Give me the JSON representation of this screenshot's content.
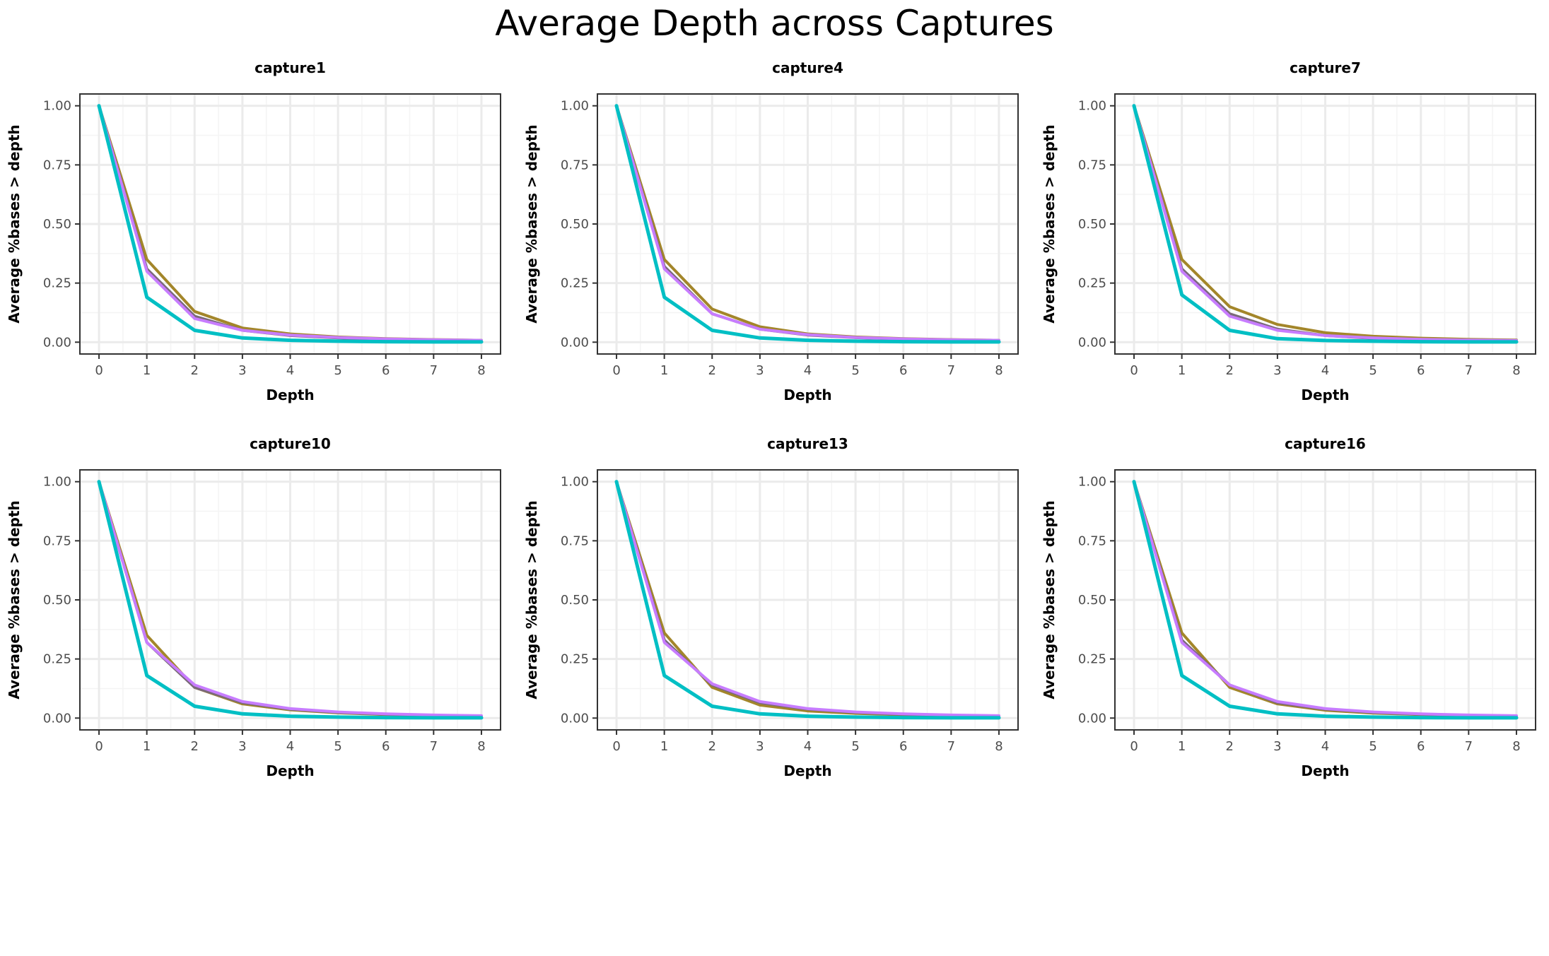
{
  "title": "Average Depth across Captures",
  "colors": {
    "series_olive": "#a3862a",
    "series_gray": "#7a6a78",
    "series_violet": "#c77cff",
    "series_teal": "#00bfc4",
    "grid_major": "#ebebeb",
    "grid_minor": "#f4f4f4",
    "panel_border": "#333333",
    "text": "#000000",
    "tick_text": "#4d4d4d"
  },
  "chart_data": [
    {
      "type": "line",
      "title": "capture1",
      "xlabel": "Depth",
      "ylabel": "Average %bases > depth",
      "x": [
        0,
        1,
        2,
        3,
        4,
        5,
        6,
        7,
        8
      ],
      "xlim": [
        -0.4,
        8.4
      ],
      "ylim": [
        -0.05,
        1.05
      ],
      "x_ticks": [
        "0",
        "1",
        "2",
        "3",
        "4",
        "5",
        "6",
        "7",
        "8"
      ],
      "y_ticks": [
        "0.00",
        "0.25",
        "0.50",
        "0.75",
        "1.00"
      ],
      "y_tick_values": [
        0,
        0.25,
        0.5,
        0.75,
        1.0
      ],
      "grid": true,
      "series": [
        {
          "color": "#a3862a",
          "values": [
            1.0,
            0.35,
            0.13,
            0.06,
            0.035,
            0.022,
            0.015,
            0.011,
            0.008
          ]
        },
        {
          "color": "#7a6a78",
          "values": [
            1.0,
            0.31,
            0.11,
            0.05,
            0.028,
            0.018,
            0.012,
            0.009,
            0.006
          ]
        },
        {
          "color": "#c77cff",
          "values": [
            1.0,
            0.3,
            0.1,
            0.05,
            0.03,
            0.02,
            0.014,
            0.01,
            0.008
          ]
        },
        {
          "color": "#00bfc4",
          "values": [
            1.0,
            0.19,
            0.05,
            0.018,
            0.008,
            0.004,
            0.002,
            0.001,
            0.001
          ]
        }
      ]
    },
    {
      "type": "line",
      "title": "capture4",
      "xlabel": "Depth",
      "ylabel": "Average %bases > depth",
      "x": [
        0,
        1,
        2,
        3,
        4,
        5,
        6,
        7,
        8
      ],
      "xlim": [
        -0.4,
        8.4
      ],
      "ylim": [
        -0.05,
        1.05
      ],
      "x_ticks": [
        "0",
        "1",
        "2",
        "3",
        "4",
        "5",
        "6",
        "7",
        "8"
      ],
      "y_ticks": [
        "0.00",
        "0.25",
        "0.50",
        "0.75",
        "1.00"
      ],
      "y_tick_values": [
        0,
        0.25,
        0.5,
        0.75,
        1.0
      ],
      "grid": true,
      "series": [
        {
          "color": "#a3862a",
          "values": [
            1.0,
            0.35,
            0.14,
            0.065,
            0.035,
            0.022,
            0.015,
            0.011,
            0.008
          ]
        },
        {
          "color": "#7a6a78",
          "values": [
            1.0,
            0.32,
            0.12,
            0.055,
            0.03,
            0.019,
            0.013,
            0.009,
            0.006
          ]
        },
        {
          "color": "#c77cff",
          "values": [
            1.0,
            0.31,
            0.12,
            0.055,
            0.032,
            0.02,
            0.014,
            0.01,
            0.008
          ]
        },
        {
          "color": "#00bfc4",
          "values": [
            1.0,
            0.19,
            0.05,
            0.018,
            0.008,
            0.004,
            0.002,
            0.001,
            0.001
          ]
        }
      ]
    },
    {
      "type": "line",
      "title": "capture7",
      "xlabel": "Depth",
      "ylabel": "Average %bases > depth",
      "x": [
        0,
        1,
        2,
        3,
        4,
        5,
        6,
        7,
        8
      ],
      "xlim": [
        -0.4,
        8.4
      ],
      "ylim": [
        -0.05,
        1.05
      ],
      "x_ticks": [
        "0",
        "1",
        "2",
        "3",
        "4",
        "5",
        "6",
        "7",
        "8"
      ],
      "y_ticks": [
        "0.00",
        "0.25",
        "0.50",
        "0.75",
        "1.00"
      ],
      "y_tick_values": [
        0,
        0.25,
        0.5,
        0.75,
        1.0
      ],
      "grid": true,
      "series": [
        {
          "color": "#a3862a",
          "values": [
            1.0,
            0.35,
            0.15,
            0.075,
            0.04,
            0.025,
            0.017,
            0.012,
            0.009
          ]
        },
        {
          "color": "#7a6a78",
          "values": [
            1.0,
            0.31,
            0.12,
            0.055,
            0.028,
            0.016,
            0.01,
            0.007,
            0.005
          ]
        },
        {
          "color": "#c77cff",
          "values": [
            1.0,
            0.3,
            0.11,
            0.05,
            0.028,
            0.018,
            0.012,
            0.009,
            0.007
          ]
        },
        {
          "color": "#00bfc4",
          "values": [
            1.0,
            0.2,
            0.05,
            0.015,
            0.007,
            0.004,
            0.002,
            0.001,
            0.001
          ]
        }
      ]
    },
    {
      "type": "line",
      "title": "capture10",
      "xlabel": "Depth",
      "ylabel": "Average %bases > depth",
      "x": [
        0,
        1,
        2,
        3,
        4,
        5,
        6,
        7,
        8
      ],
      "xlim": [
        -0.4,
        8.4
      ],
      "ylim": [
        -0.05,
        1.05
      ],
      "x_ticks": [
        "0",
        "1",
        "2",
        "3",
        "4",
        "5",
        "6",
        "7",
        "8"
      ],
      "y_ticks": [
        "0.00",
        "0.25",
        "0.50",
        "0.75",
        "1.00"
      ],
      "y_tick_values": [
        0,
        0.25,
        0.5,
        0.75,
        1.0
      ],
      "grid": true,
      "series": [
        {
          "color": "#a3862a",
          "values": [
            1.0,
            0.35,
            0.13,
            0.06,
            0.035,
            0.022,
            0.015,
            0.011,
            0.008
          ]
        },
        {
          "color": "#7a6a78",
          "values": [
            1.0,
            0.32,
            0.13,
            0.065,
            0.038,
            0.024,
            0.016,
            0.011,
            0.008
          ]
        },
        {
          "color": "#c77cff",
          "values": [
            1.0,
            0.32,
            0.14,
            0.07,
            0.04,
            0.026,
            0.018,
            0.013,
            0.01
          ]
        },
        {
          "color": "#00bfc4",
          "values": [
            1.0,
            0.18,
            0.05,
            0.018,
            0.008,
            0.004,
            0.002,
            0.001,
            0.001
          ]
        }
      ]
    },
    {
      "type": "line",
      "title": "capture13",
      "xlabel": "Depth",
      "ylabel": "Average %bases > depth",
      "x": [
        0,
        1,
        2,
        3,
        4,
        5,
        6,
        7,
        8
      ],
      "xlim": [
        -0.4,
        8.4
      ],
      "ylim": [
        -0.05,
        1.05
      ],
      "x_ticks": [
        "0",
        "1",
        "2",
        "3",
        "4",
        "5",
        "6",
        "7",
        "8"
      ],
      "y_ticks": [
        "0.00",
        "0.25",
        "0.50",
        "0.75",
        "1.00"
      ],
      "y_tick_values": [
        0,
        0.25,
        0.5,
        0.75,
        1.0
      ],
      "grid": true,
      "series": [
        {
          "color": "#a3862a",
          "values": [
            1.0,
            0.36,
            0.13,
            0.055,
            0.03,
            0.02,
            0.014,
            0.01,
            0.007
          ]
        },
        {
          "color": "#7a6a78",
          "values": [
            1.0,
            0.33,
            0.14,
            0.065,
            0.038,
            0.024,
            0.016,
            0.011,
            0.008
          ]
        },
        {
          "color": "#c77cff",
          "values": [
            1.0,
            0.32,
            0.145,
            0.07,
            0.04,
            0.026,
            0.018,
            0.013,
            0.01
          ]
        },
        {
          "color": "#00bfc4",
          "values": [
            1.0,
            0.18,
            0.05,
            0.018,
            0.008,
            0.004,
            0.002,
            0.001,
            0.001
          ]
        }
      ]
    },
    {
      "type": "line",
      "title": "capture16",
      "xlabel": "Depth",
      "ylabel": "Average %bases > depth",
      "x": [
        0,
        1,
        2,
        3,
        4,
        5,
        6,
        7,
        8
      ],
      "xlim": [
        -0.4,
        8.4
      ],
      "ylim": [
        -0.05,
        1.05
      ],
      "x_ticks": [
        "0",
        "1",
        "2",
        "3",
        "4",
        "5",
        "6",
        "7",
        "8"
      ],
      "y_ticks": [
        "0.00",
        "0.25",
        "0.50",
        "0.75",
        "1.00"
      ],
      "y_tick_values": [
        0,
        0.25,
        0.5,
        0.75,
        1.0
      ],
      "grid": true,
      "series": [
        {
          "color": "#a3862a",
          "values": [
            1.0,
            0.36,
            0.13,
            0.06,
            0.033,
            0.021,
            0.015,
            0.011,
            0.008
          ]
        },
        {
          "color": "#7a6a78",
          "values": [
            1.0,
            0.33,
            0.14,
            0.065,
            0.038,
            0.024,
            0.016,
            0.011,
            0.008
          ]
        },
        {
          "color": "#c77cff",
          "values": [
            1.0,
            0.32,
            0.14,
            0.07,
            0.04,
            0.026,
            0.018,
            0.013,
            0.01
          ]
        },
        {
          "color": "#00bfc4",
          "values": [
            1.0,
            0.18,
            0.05,
            0.018,
            0.008,
            0.004,
            0.002,
            0.001,
            0.001
          ]
        }
      ]
    }
  ]
}
